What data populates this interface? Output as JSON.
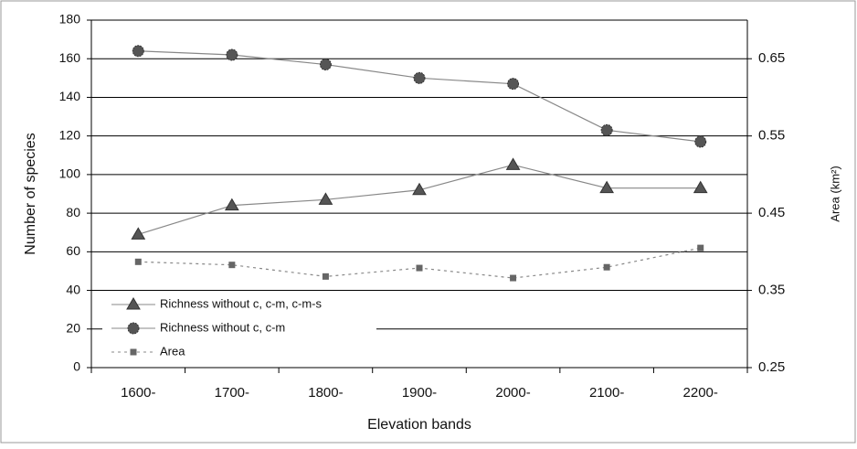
{
  "chart_data": {
    "type": "line",
    "x_label": "Elevation bands",
    "y_label": "Number of species",
    "y2_label": "Area (km²)",
    "categories": [
      "1600-",
      "1700-",
      "1800-",
      "1900-",
      "2000-",
      "2100-",
      "2200-"
    ],
    "series": [
      {
        "name": "Richness without c, c-m, c-m-s",
        "color": "#555555",
        "marker": "triangle",
        "values": [
          69,
          84,
          87,
          92,
          105,
          93,
          93
        ]
      },
      {
        "name": "Richness without c, c-m",
        "color": "#555555",
        "marker": "circle",
        "values": [
          164,
          162,
          157,
          150,
          147,
          123,
          117
        ]
      },
      {
        "name": "Area",
        "color": "#666666",
        "marker": "square",
        "dashed": true,
        "axis": "y2",
        "values": [
          0.387,
          0.383,
          0.368,
          0.379,
          0.366,
          0.38,
          0.405
        ]
      }
    ],
    "ylim": [
      0,
      180
    ],
    "yticks": [
      0,
      20,
      40,
      60,
      80,
      100,
      120,
      140,
      160,
      180
    ],
    "y2lim": [
      0.25,
      0.7
    ],
    "y2ticks": [
      0.25,
      0.35,
      0.45,
      0.55,
      0.65
    ],
    "grid": true,
    "legend": "lower left"
  }
}
